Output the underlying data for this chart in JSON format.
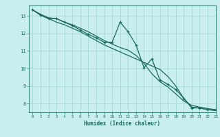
{
  "title": "",
  "xlabel": "Humidex (Indice chaleur)",
  "bg_color": "#c8eef0",
  "line_color": "#1a6b5a",
  "grid_color": "#a0d4cc",
  "xlim": [
    -0.5,
    23
  ],
  "ylim": [
    7.5,
    13.6
  ],
  "yticks": [
    8,
    9,
    10,
    11,
    12,
    13
  ],
  "xticks": [
    0,
    1,
    2,
    3,
    4,
    5,
    6,
    7,
    8,
    9,
    10,
    11,
    12,
    13,
    14,
    15,
    16,
    17,
    18,
    19,
    20,
    21,
    22,
    23
  ],
  "line_jagged_x": [
    0,
    1,
    2,
    3,
    4,
    5,
    6,
    7,
    8,
    9,
    10,
    11,
    12,
    13,
    14,
    15,
    16,
    17,
    18,
    19,
    20,
    21,
    22,
    23
  ],
  "line_jagged_y": [
    13.35,
    13.05,
    12.85,
    12.85,
    12.65,
    12.45,
    12.2,
    11.95,
    11.75,
    11.5,
    11.5,
    12.65,
    12.1,
    11.35,
    10.05,
    10.55,
    9.35,
    9.1,
    8.8,
    8.3,
    7.75,
    7.75,
    7.65,
    7.65
  ],
  "line_upper_x": [
    0,
    1,
    2,
    3,
    4,
    5,
    6,
    7,
    8,
    9,
    10,
    11,
    12,
    13,
    14,
    15,
    16,
    17,
    18,
    19,
    20,
    21,
    22,
    23
  ],
  "line_upper_y": [
    13.35,
    13.1,
    12.9,
    12.85,
    12.65,
    12.5,
    12.3,
    12.1,
    11.85,
    11.6,
    11.4,
    11.2,
    11.05,
    10.75,
    10.3,
    9.7,
    9.25,
    8.95,
    8.55,
    8.15,
    7.9,
    7.8,
    7.72,
    7.65
  ],
  "line_lower_x": [
    0,
    1,
    2,
    3,
    4,
    5,
    6,
    7,
    8,
    9,
    10,
    11,
    12,
    13,
    14,
    15,
    16,
    17,
    18,
    19,
    20,
    21,
    22,
    23
  ],
  "line_lower_y": [
    13.35,
    13.05,
    12.85,
    12.65,
    12.5,
    12.3,
    12.1,
    11.85,
    11.6,
    11.35,
    11.15,
    10.95,
    10.75,
    10.55,
    10.35,
    10.15,
    9.95,
    9.55,
    9.0,
    8.3,
    7.8,
    7.75,
    7.65,
    7.6
  ]
}
